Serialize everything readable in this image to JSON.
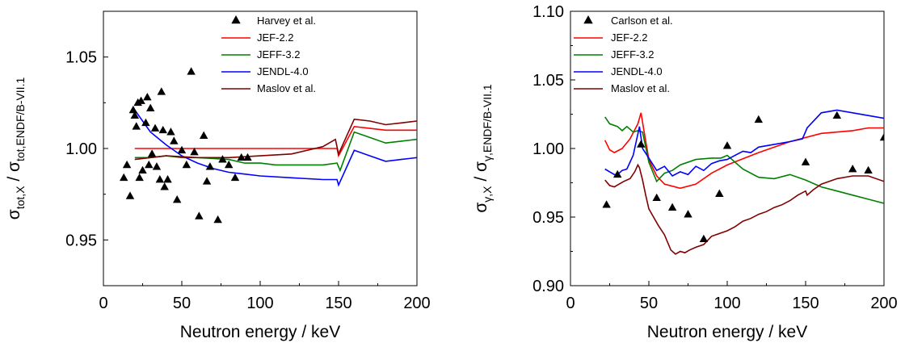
{
  "chart_data": [
    {
      "type": "line",
      "xlabel": "Neutron energy / keV",
      "ylabel_main": "σ",
      "ylabel_num_sub": "tot,X",
      "ylabel_sep": " / σ",
      "ylabel_den_sub": "tot,ENDF/B-VII.1",
      "xlim": [
        0,
        200
      ],
      "ylim": [
        0.925,
        1.075
      ],
      "xticks": [
        0,
        50,
        100,
        150,
        200
      ],
      "yticks": [
        0.95,
        1.0,
        1.05
      ],
      "xtick_labels": [
        "0",
        "50",
        "100",
        "150",
        "200"
      ],
      "ytick_labels": [
        "0.95",
        "1.00",
        "1.05"
      ],
      "legend_position": "top-right",
      "scatter": {
        "name": "Harvey et al.",
        "points": [
          [
            13,
            0.984
          ],
          [
            15,
            0.991
          ],
          [
            17,
            0.974
          ],
          [
            19,
            1.021
          ],
          [
            20,
            1.018
          ],
          [
            21,
            1.012
          ],
          [
            22,
            1.025
          ],
          [
            23,
            0.984
          ],
          [
            24,
            1.026
          ],
          [
            25,
            0.988
          ],
          [
            27,
            1.014
          ],
          [
            28,
            1.028
          ],
          [
            29,
            0.991
          ],
          [
            30,
            1.022
          ],
          [
            31,
            0.997
          ],
          [
            33,
            1.011
          ],
          [
            34,
            0.99
          ],
          [
            36,
            0.983
          ],
          [
            37,
            1.031
          ],
          [
            38,
            1.01
          ],
          [
            39,
            0.979
          ],
          [
            41,
            0.983
          ],
          [
            43,
            1.009
          ],
          [
            45,
            1.004
          ],
          [
            47,
            0.972
          ],
          [
            50,
            0.999
          ],
          [
            53,
            0.991
          ],
          [
            56,
            1.042
          ],
          [
            58,
            0.998
          ],
          [
            61,
            0.963
          ],
          [
            64,
            1.007
          ],
          [
            66,
            0.982
          ],
          [
            68,
            0.99
          ],
          [
            73,
            0.961
          ],
          [
            76,
            0.994
          ],
          [
            80,
            0.991
          ],
          [
            84,
            0.984
          ],
          [
            88,
            0.995
          ],
          [
            92,
            0.995
          ]
        ]
      },
      "series": [
        {
          "name": "JEF-2.2",
          "color": "#ff0000",
          "points": [
            [
              20,
              1.0
            ],
            [
              40,
              1.0
            ],
            [
              60,
              1.0
            ],
            [
              80,
              1.0
            ],
            [
              100,
              1.0
            ],
            [
              120,
              1.0
            ],
            [
              140,
              1.0
            ],
            [
              149,
              1.0
            ],
            [
              150,
              0.996
            ],
            [
              160,
              1.012
            ],
            [
              170,
              1.011
            ],
            [
              180,
              1.01
            ],
            [
              190,
              1.01
            ],
            [
              200,
              1.01
            ]
          ]
        },
        {
          "name": "JEFF-3.2",
          "color": "#008000",
          "points": [
            [
              20,
              0.995
            ],
            [
              30,
              0.995
            ],
            [
              40,
              0.996
            ],
            [
              50,
              0.995
            ],
            [
              60,
              0.995
            ],
            [
              80,
              0.994
            ],
            [
              90,
              0.992
            ],
            [
              100,
              0.992
            ],
            [
              110,
              0.991
            ],
            [
              120,
              0.991
            ],
            [
              140,
              0.991
            ],
            [
              149,
              0.992
            ],
            [
              151,
              0.988
            ],
            [
              160,
              1.009
            ],
            [
              170,
              1.006
            ],
            [
              180,
              1.003
            ],
            [
              190,
              1.004
            ],
            [
              200,
              1.005
            ]
          ]
        },
        {
          "name": "JENDL-4.0",
          "color": "#0000ff",
          "points": [
            [
              20,
              1.021
            ],
            [
              30,
              1.009
            ],
            [
              40,
              1.002
            ],
            [
              50,
              0.996
            ],
            [
              60,
              0.992
            ],
            [
              70,
              0.989
            ],
            [
              80,
              0.987
            ],
            [
              90,
              0.986
            ],
            [
              100,
              0.985
            ],
            [
              120,
              0.984
            ],
            [
              140,
              0.983
            ],
            [
              149,
              0.983
            ],
            [
              150,
              0.98
            ],
            [
              160,
              0.999
            ],
            [
              170,
              0.996
            ],
            [
              180,
              0.993
            ],
            [
              190,
              0.994
            ],
            [
              200,
              0.995
            ]
          ]
        },
        {
          "name": "Maslov et al.",
          "color": "#800000",
          "points": [
            [
              20,
              0.994
            ],
            [
              40,
              0.996
            ],
            [
              60,
              0.995
            ],
            [
              80,
              0.995
            ],
            [
              100,
              0.996
            ],
            [
              120,
              0.997
            ],
            [
              140,
              1.001
            ],
            [
              148,
              1.005
            ],
            [
              150,
              0.997
            ],
            [
              160,
              1.016
            ],
            [
              170,
              1.015
            ],
            [
              180,
              1.013
            ],
            [
              190,
              1.014
            ],
            [
              200,
              1.015
            ]
          ]
        }
      ]
    },
    {
      "type": "line",
      "xlabel": "Neutron energy / keV",
      "ylabel_main": "σ",
      "ylabel_num_sub": "γ,X",
      "ylabel_sep": " / σ",
      "ylabel_den_sub": "γ,ENDF/B-VII.1",
      "xlim": [
        0,
        200
      ],
      "ylim": [
        0.9,
        1.1
      ],
      "xticks": [
        0,
        50,
        100,
        150,
        200
      ],
      "yticks": [
        0.9,
        0.95,
        1.0,
        1.05,
        1.1
      ],
      "xtick_labels": [
        "0",
        "50",
        "100",
        "150",
        "200"
      ],
      "ytick_labels": [
        "0.90",
        "0.95",
        "1.00",
        "1.05",
        "1.10"
      ],
      "legend_position": "top-left",
      "scatter": {
        "name": "Carlson et al.",
        "points": [
          [
            23,
            0.959
          ],
          [
            30,
            0.981
          ],
          [
            45,
            1.003
          ],
          [
            55,
            0.964
          ],
          [
            65,
            0.957
          ],
          [
            75,
            0.952
          ],
          [
            85,
            0.934
          ],
          [
            95,
            0.967
          ],
          [
            100,
            1.002
          ],
          [
            120,
            1.021
          ],
          [
            150,
            0.99
          ],
          [
            170,
            1.024
          ],
          [
            180,
            0.985
          ],
          [
            190,
            0.984
          ],
          [
            200,
            1.008
          ]
        ]
      },
      "series": [
        {
          "name": "JEF-2.2",
          "color": "#ff0000",
          "points": [
            [
              22,
              1.006
            ],
            [
              25,
              0.999
            ],
            [
              28,
              0.997
            ],
            [
              33,
              1.0
            ],
            [
              38,
              1.007
            ],
            [
              43,
              1.018
            ],
            [
              45,
              1.026
            ],
            [
              47,
              1.012
            ],
            [
              50,
              0.992
            ],
            [
              55,
              0.98
            ],
            [
              60,
              0.974
            ],
            [
              70,
              0.971
            ],
            [
              80,
              0.974
            ],
            [
              90,
              0.982
            ],
            [
              100,
              0.988
            ],
            [
              120,
              0.997
            ],
            [
              140,
              1.005
            ],
            [
              160,
              1.011
            ],
            [
              180,
              1.013
            ],
            [
              190,
              1.015
            ],
            [
              200,
              1.015
            ]
          ]
        },
        {
          "name": "JEFF-3.2",
          "color": "#008000",
          "points": [
            [
              22,
              1.023
            ],
            [
              25,
              1.018
            ],
            [
              30,
              1.016
            ],
            [
              33,
              1.013
            ],
            [
              36,
              1.016
            ],
            [
              40,
              1.012
            ],
            [
              43,
              1.013
            ],
            [
              46,
              1.012
            ],
            [
              50,
              0.99
            ],
            [
              55,
              0.976
            ],
            [
              60,
              0.982
            ],
            [
              65,
              0.984
            ],
            [
              70,
              0.988
            ],
            [
              80,
              0.992
            ],
            [
              90,
              0.993
            ],
            [
              96,
              0.993
            ],
            [
              100,
              0.995
            ],
            [
              110,
              0.985
            ],
            [
              120,
              0.979
            ],
            [
              130,
              0.978
            ],
            [
              140,
              0.981
            ],
            [
              150,
              0.977
            ],
            [
              160,
              0.972
            ],
            [
              170,
              0.969
            ],
            [
              180,
              0.966
            ],
            [
              190,
              0.963
            ],
            [
              200,
              0.96
            ]
          ]
        },
        {
          "name": "JENDL-4.0",
          "color": "#0000ff",
          "points": [
            [
              22,
              0.985
            ],
            [
              25,
              0.983
            ],
            [
              28,
              0.981
            ],
            [
              30,
              0.981
            ],
            [
              33,
              0.984
            ],
            [
              36,
              0.985
            ],
            [
              40,
              0.995
            ],
            [
              44,
              1.016
            ],
            [
              46,
              1.0
            ],
            [
              50,
              0.993
            ],
            [
              55,
              0.984
            ],
            [
              60,
              0.987
            ],
            [
              65,
              0.98
            ],
            [
              70,
              0.983
            ],
            [
              75,
              0.981
            ],
            [
              80,
              0.987
            ],
            [
              85,
              0.984
            ],
            [
              90,
              0.989
            ],
            [
              95,
              0.991
            ],
            [
              100,
              0.992
            ],
            [
              110,
              0.998
            ],
            [
              115,
              0.997
            ],
            [
              120,
              1.001
            ],
            [
              130,
              1.003
            ],
            [
              140,
              1.005
            ],
            [
              148,
              1.007
            ],
            [
              151,
              1.015
            ],
            [
              160,
              1.026
            ],
            [
              170,
              1.028
            ],
            [
              180,
              1.026
            ],
            [
              190,
              1.024
            ],
            [
              200,
              1.022
            ]
          ]
        },
        {
          "name": "Maslov et al.",
          "color": "#800000",
          "points": [
            [
              22,
              0.977
            ],
            [
              25,
              0.973
            ],
            [
              28,
              0.972
            ],
            [
              31,
              0.974
            ],
            [
              34,
              0.976
            ],
            [
              38,
              0.978
            ],
            [
              41,
              0.983
            ],
            [
              43,
              0.988
            ],
            [
              44,
              0.986
            ],
            [
              46,
              0.977
            ],
            [
              48,
              0.966
            ],
            [
              50,
              0.956
            ],
            [
              53,
              0.95
            ],
            [
              56,
              0.944
            ],
            [
              60,
              0.937
            ],
            [
              64,
              0.926
            ],
            [
              67,
              0.923
            ],
            [
              70,
              0.925
            ],
            [
              73,
              0.924
            ],
            [
              76,
              0.926
            ],
            [
              80,
              0.928
            ],
            [
              85,
              0.93
            ],
            [
              90,
              0.936
            ],
            [
              95,
              0.938
            ],
            [
              100,
              0.94
            ],
            [
              105,
              0.943
            ],
            [
              110,
              0.947
            ],
            [
              115,
              0.949
            ],
            [
              120,
              0.952
            ],
            [
              125,
              0.954
            ],
            [
              130,
              0.957
            ],
            [
              135,
              0.959
            ],
            [
              140,
              0.962
            ],
            [
              145,
              0.966
            ],
            [
              150,
              0.969
            ],
            [
              151,
              0.966
            ],
            [
              155,
              0.97
            ],
            [
              160,
              0.974
            ],
            [
              170,
              0.978
            ],
            [
              180,
              0.98
            ],
            [
              190,
              0.98
            ],
            [
              200,
              0.976
            ]
          ]
        }
      ]
    }
  ]
}
